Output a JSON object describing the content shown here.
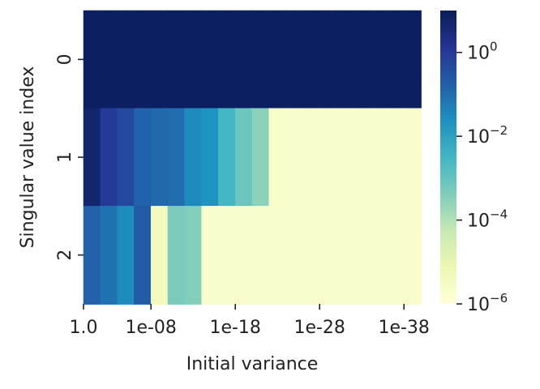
{
  "chart_data": {
    "type": "heatmap",
    "title": "",
    "xlabel": "Initial variance",
    "ylabel": "Singular value index",
    "x_tick_labels": [
      "1.0",
      "1e-08",
      "1e-18",
      "1e-28",
      "1e-38"
    ],
    "x_tick_cols": [
      0,
      4,
      9,
      14,
      19
    ],
    "y_tick_labels": [
      "0",
      "1",
      "2"
    ],
    "colorbar": {
      "scale": "log",
      "vmin": 1e-06,
      "vmax": 10,
      "tick_bases": [
        "10",
        "10",
        "10",
        "10"
      ],
      "tick_exponents": [
        "0",
        "−2",
        "−4",
        "−6"
      ],
      "tick_values": [
        1,
        0.01,
        0.0001,
        1e-06
      ]
    },
    "colormap": [
      "#ffffd9",
      "#edf8b1",
      "#c7e9b4",
      "#7fcdbb",
      "#41b6c4",
      "#1d91c0",
      "#225ea8",
      "#253494",
      "#081d58"
    ],
    "n_cols": 20,
    "values": [
      [
        7.5,
        7.5,
        7.5,
        7.5,
        7.5,
        7.5,
        7.5,
        7.5,
        7.5,
        7.5,
        7.5,
        7.5,
        7.5,
        7.5,
        7.5,
        7.5,
        7.5,
        7.5,
        7.5,
        7.5
      ],
      [
        5,
        1,
        0.5,
        0.15,
        0.12,
        0.1,
        0.03,
        0.02,
        0.003,
        0.0008,
        0.0003,
        2e-06,
        2e-06,
        2e-06,
        2e-06,
        2e-06,
        2e-06,
        2e-06,
        2e-06,
        2e-06
      ],
      [
        0.15,
        0.08,
        0.03,
        0.2,
        4e-06,
        0.0005,
        0.0004,
        2e-06,
        2e-06,
        2e-06,
        2e-06,
        2e-06,
        2e-06,
        2e-06,
        2e-06,
        2e-06,
        2e-06,
        2e-06,
        2e-06,
        2e-06
      ]
    ]
  }
}
